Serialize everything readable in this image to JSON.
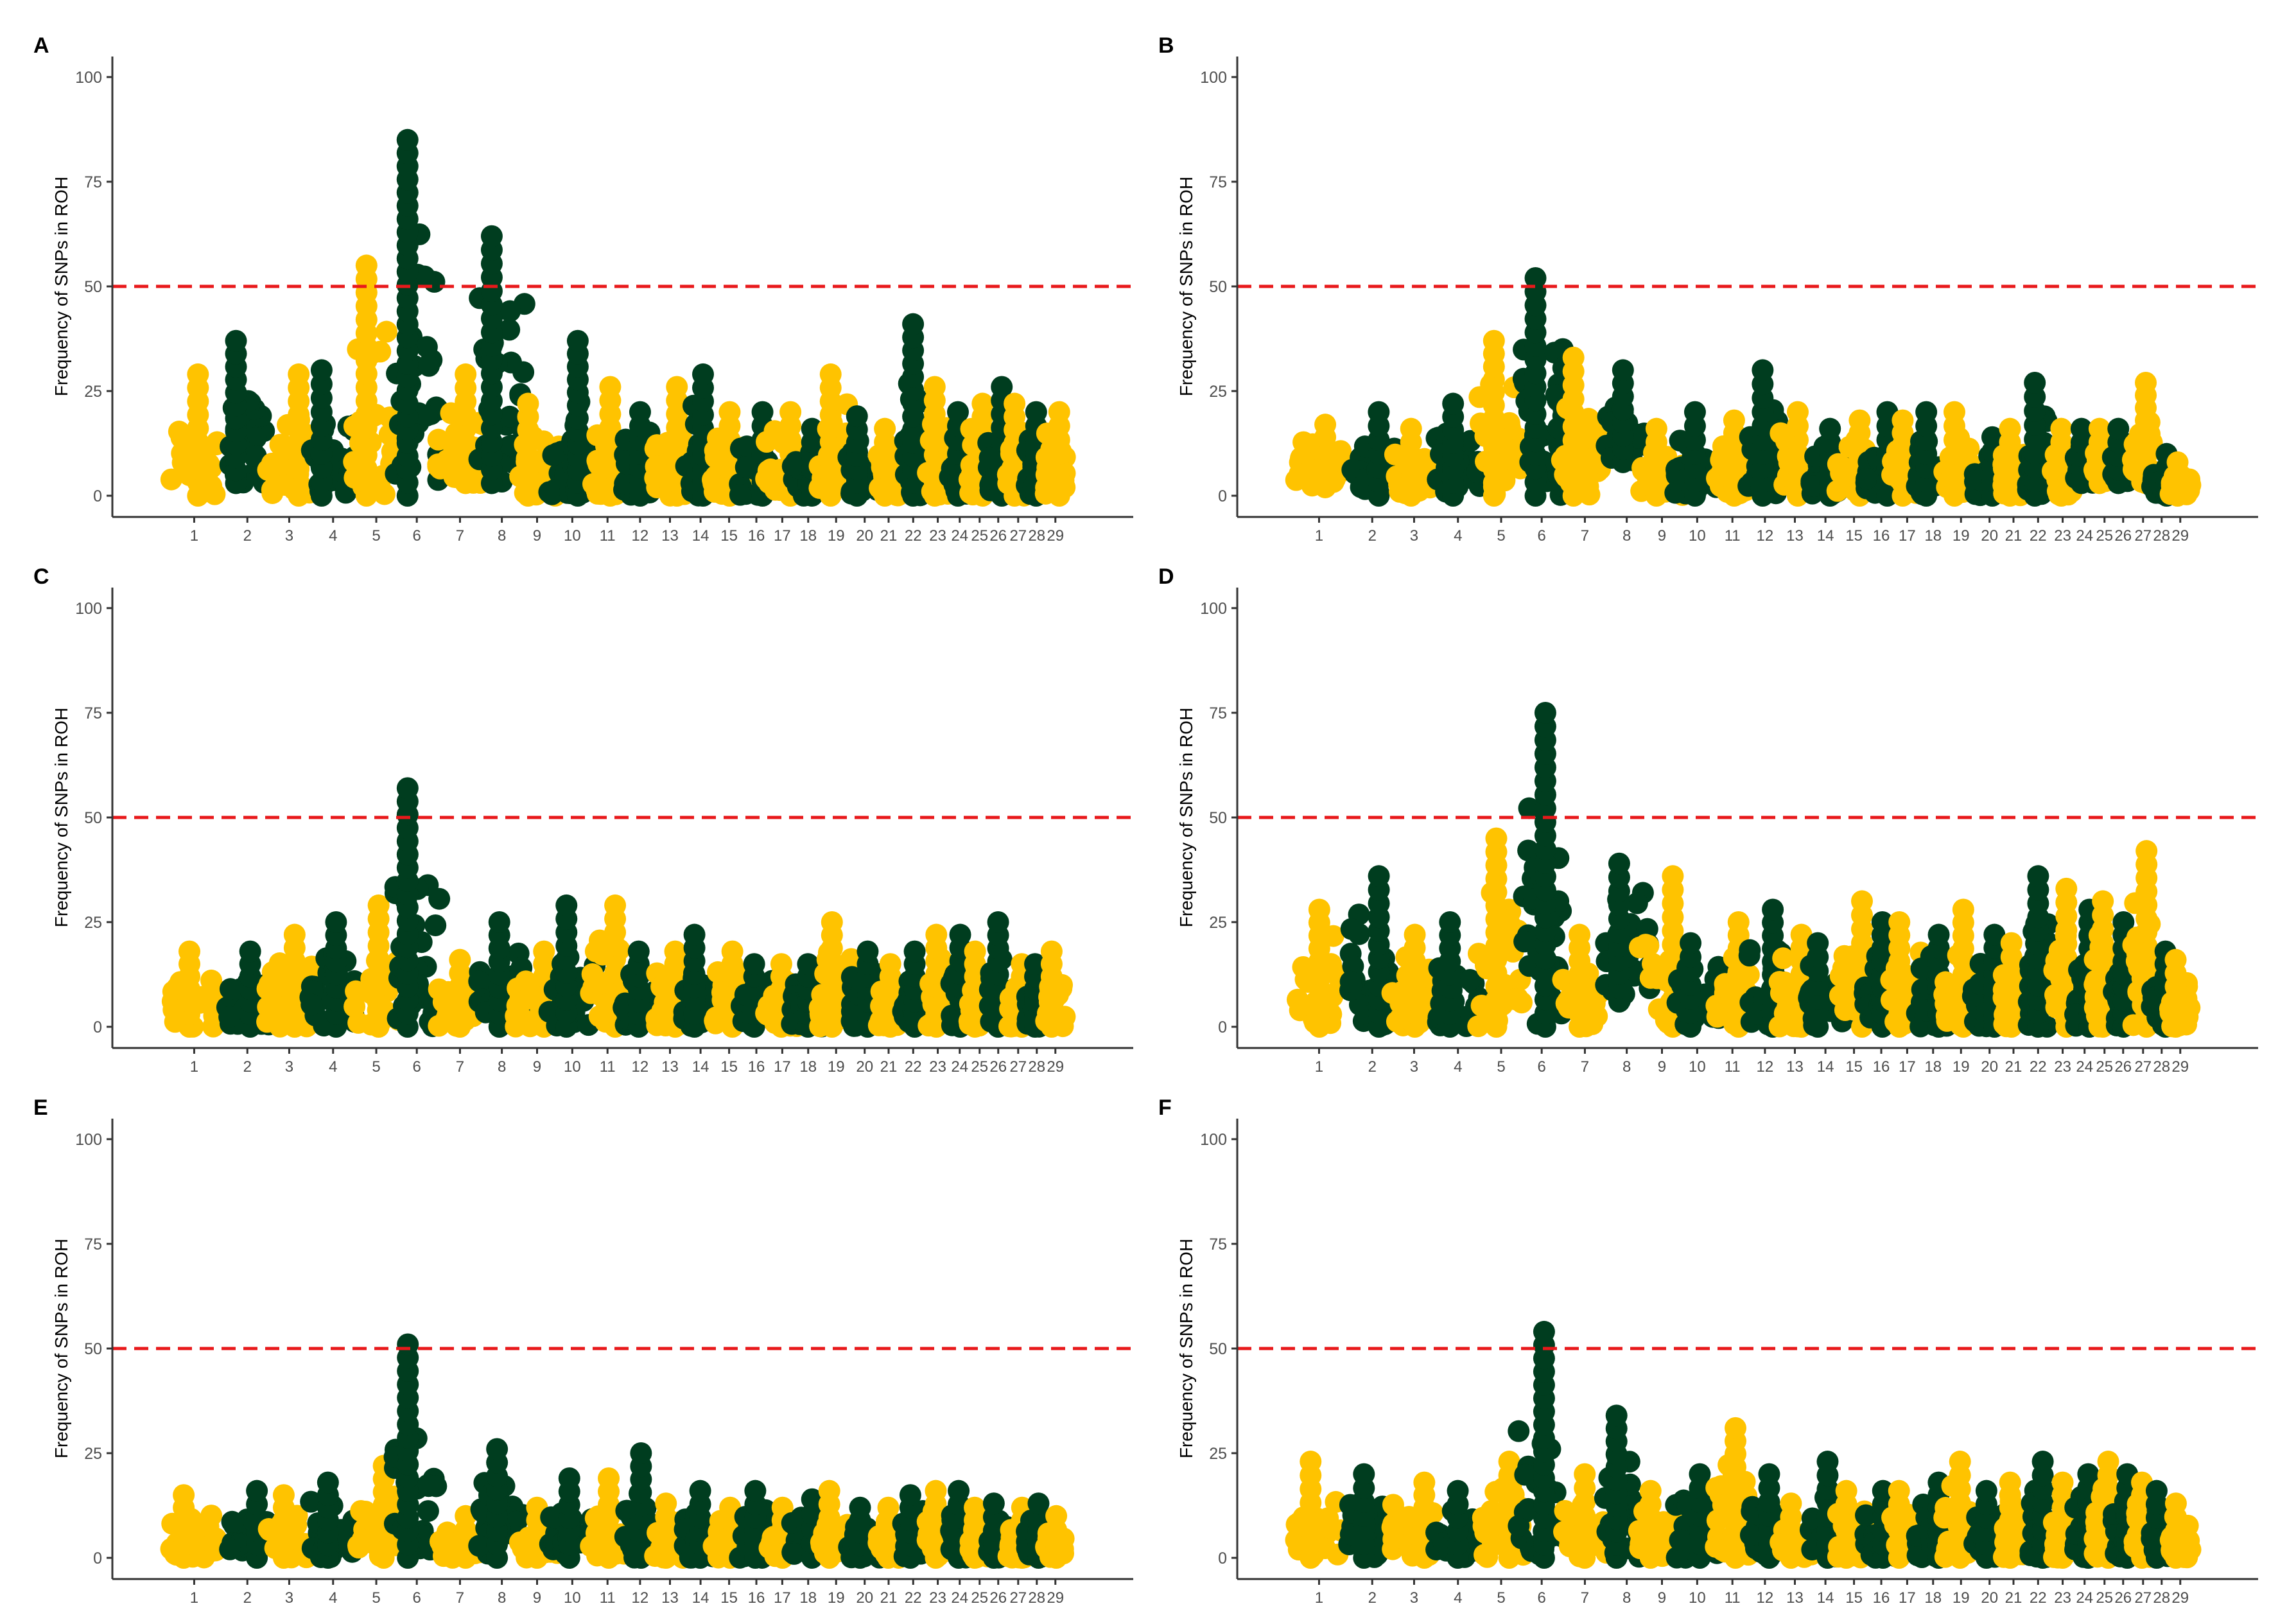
{
  "colors": {
    "series_a": "#ffc300",
    "series_b": "#003d1f",
    "threshold": "#e8191b",
    "axis": "#333333",
    "tick_text": "#4d4d4d"
  },
  "chromosome_labels": [
    "1",
    "2",
    "3",
    "4",
    "5",
    "6",
    "7",
    "8",
    "9",
    "10",
    "11",
    "12",
    "13",
    "14",
    "15",
    "16",
    "17",
    "18",
    "19",
    "20",
    "21",
    "22",
    "23",
    "24",
    "25",
    "26",
    "27",
    "28",
    "29"
  ],
  "chart_data": [
    {
      "panel": "A",
      "type": "scatter",
      "ylabel": "Frequency of SNPs in ROH",
      "ylim": [
        0,
        100
      ],
      "yticks": [
        0,
        25,
        50,
        75,
        100
      ],
      "threshold": 50,
      "point_colors": "alternating by chromosome (yellow odd, dark green even)",
      "chromosome_max": [
        29,
        37,
        29,
        30,
        55,
        85,
        29,
        62,
        22,
        37,
        26,
        20,
        26,
        29,
        20,
        20,
        20,
        16,
        29,
        19,
        16,
        41,
        26,
        20,
        22,
        26,
        22,
        20,
        20
      ],
      "chromosome_min": [
        0,
        3,
        0,
        0,
        0,
        0,
        3,
        3,
        0,
        0,
        0,
        0,
        0,
        0,
        0,
        0,
        0,
        0,
        0,
        0,
        0,
        0,
        0,
        0,
        0,
        0,
        0,
        0,
        0
      ]
    },
    {
      "panel": "B",
      "type": "scatter",
      "ylabel": "Frequency of SNPs in ROH",
      "ylim": [
        0,
        100
      ],
      "yticks": [
        0,
        25,
        50,
        75,
        100
      ],
      "threshold": 50,
      "point_colors": "alternating by chromosome (yellow odd, dark green even)",
      "chromosome_max": [
        17,
        20,
        16,
        22,
        37,
        52,
        33,
        30,
        16,
        20,
        18,
        30,
        20,
        16,
        18,
        20,
        18,
        20,
        20,
        14,
        16,
        27,
        16,
        16,
        16,
        16,
        27,
        10,
        8
      ],
      "chromosome_min": [
        2,
        0,
        0,
        0,
        0,
        0,
        0,
        8,
        0,
        0,
        0,
        0,
        0,
        0,
        0,
        0,
        0,
        0,
        0,
        0,
        0,
        0,
        0,
        3,
        3,
        3,
        3,
        0,
        0
      ]
    },
    {
      "panel": "C",
      "type": "scatter",
      "ylabel": "Frequency of SNPs in ROH",
      "ylim": [
        0,
        100
      ],
      "yticks": [
        0,
        25,
        50,
        75,
        100
      ],
      "threshold": 50,
      "point_colors": "alternating by chromosome (yellow odd, dark green even)",
      "chromosome_max": [
        18,
        18,
        22,
        25,
        29,
        57,
        16,
        25,
        18,
        29,
        29,
        18,
        18,
        22,
        18,
        15,
        15,
        15,
        25,
        18,
        15,
        18,
        22,
        22,
        18,
        25,
        15,
        15,
        18
      ],
      "chromosome_min": [
        0,
        0,
        0,
        0,
        0,
        0,
        0,
        0,
        0,
        0,
        0,
        0,
        0,
        0,
        0,
        0,
        0,
        0,
        0,
        0,
        0,
        0,
        0,
        0,
        0,
        0,
        0,
        0,
        0
      ]
    },
    {
      "panel": "D",
      "type": "scatter",
      "ylabel": "Frequency of SNPs in ROH",
      "ylim": [
        0,
        100
      ],
      "yticks": [
        0,
        25,
        50,
        75,
        100
      ],
      "threshold": 50,
      "point_colors": "alternating by chromosome (yellow odd, dark green even)",
      "chromosome_max": [
        28,
        36,
        22,
        25,
        45,
        75,
        22,
        39,
        36,
        20,
        25,
        28,
        22,
        20,
        30,
        25,
        25,
        22,
        28,
        22,
        20,
        36,
        33,
        28,
        30,
        25,
        42,
        18,
        16
      ],
      "chromosome_min": [
        0,
        0,
        0,
        0,
        0,
        0,
        0,
        6,
        0,
        0,
        0,
        0,
        0,
        0,
        0,
        0,
        0,
        0,
        0,
        0,
        0,
        0,
        0,
        0,
        0,
        0,
        0,
        0,
        0
      ]
    },
    {
      "panel": "E",
      "type": "scatter",
      "ylabel": "Frequency of SNPs in ROH",
      "ylim": [
        0,
        100
      ],
      "yticks": [
        0,
        25,
        50,
        75,
        100
      ],
      "threshold": 50,
      "point_colors": "alternating by chromosome (yellow odd, dark green even)",
      "chromosome_max": [
        15,
        16,
        15,
        18,
        22,
        51,
        10,
        26,
        12,
        19,
        19,
        25,
        13,
        16,
        12,
        16,
        12,
        14,
        16,
        12,
        12,
        15,
        16,
        16,
        12,
        13,
        12,
        13,
        10
      ],
      "chromosome_min": [
        0,
        0,
        0,
        0,
        0,
        0,
        0,
        0,
        0,
        0,
        0,
        0,
        0,
        0,
        0,
        0,
        0,
        0,
        0,
        0,
        0,
        0,
        0,
        0,
        0,
        0,
        0,
        0,
        0
      ]
    },
    {
      "panel": "F",
      "type": "scatter",
      "ylabel": "Frequency of SNPs in ROH",
      "ylim": [
        0,
        100
      ],
      "yticks": [
        0,
        25,
        50,
        75,
        100
      ],
      "threshold": 50,
      "point_colors": "alternating by chromosome (yellow odd, dark green even)",
      "chromosome_max": [
        23,
        20,
        18,
        16,
        23,
        54,
        20,
        34,
        16,
        20,
        31,
        20,
        13,
        23,
        16,
        16,
        16,
        18,
        23,
        16,
        18,
        23,
        18,
        20,
        23,
        20,
        18,
        16,
        13
      ],
      "chromosome_min": [
        0,
        0,
        0,
        0,
        0,
        0,
        0,
        0,
        0,
        0,
        0,
        0,
        0,
        0,
        0,
        0,
        0,
        0,
        0,
        0,
        0,
        0,
        0,
        0,
        0,
        0,
        0,
        0,
        0
      ]
    }
  ]
}
